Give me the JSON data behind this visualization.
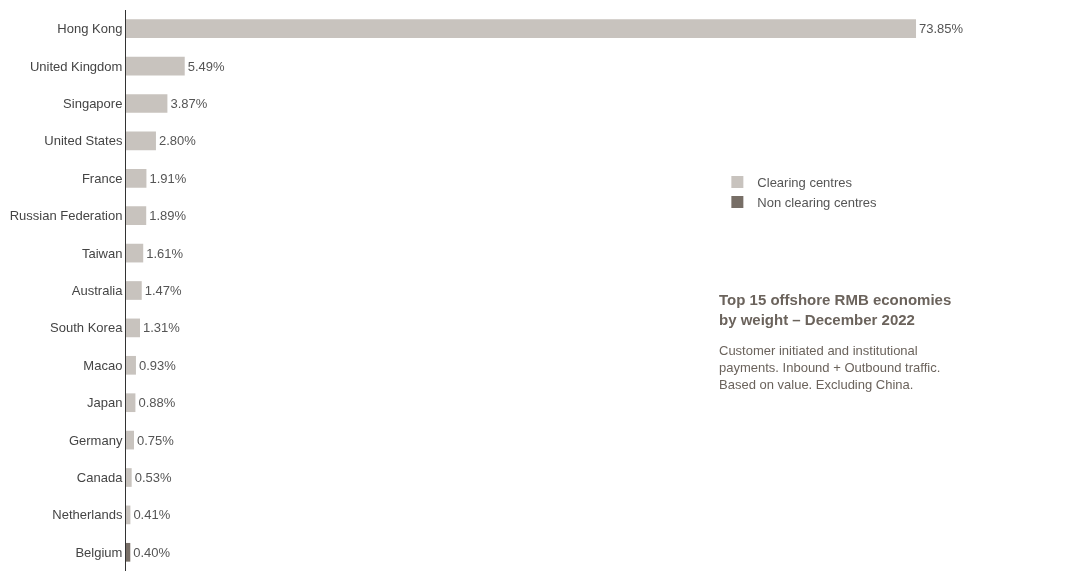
{
  "chart_data": {
    "type": "bar",
    "orientation": "horizontal",
    "title": "Top 15 offshore RMB economies by weight – December 2022",
    "subtitle": "Customer initiated and institutional payments. Inbound + Outbound traffic. Based on value. Excluding China.",
    "categories": [
      "Hong Kong",
      "United Kingdom",
      "Singapore",
      "United States",
      "France",
      "Russian Federation",
      "Taiwan",
      "Australia",
      "South Korea",
      "Macao",
      "Japan",
      "Germany",
      "Canada",
      "Netherlands",
      "Belgium"
    ],
    "series": [
      {
        "name": "Clearing centres",
        "color": "#c8c3be",
        "values": [
          73.85,
          5.49,
          3.87,
          2.8,
          1.91,
          1.89,
          1.61,
          1.47,
          1.31,
          0.93,
          0.88,
          0.75,
          0.53,
          0.41,
          null
        ],
        "value_labels": [
          "73.85%",
          "5.49%",
          "3.87%",
          "2.80%",
          "1.91%",
          "1.89%",
          "1.61%",
          "1.47%",
          "1.31%",
          "0.93%",
          "0.88%",
          "0.75%",
          "0.53%",
          "0.41%",
          null
        ]
      },
      {
        "name": "Non clearing centres",
        "color": "#776e66",
        "values": [
          null,
          null,
          null,
          null,
          null,
          null,
          null,
          null,
          null,
          null,
          null,
          null,
          null,
          null,
          0.4
        ],
        "value_labels": [
          null,
          null,
          null,
          null,
          null,
          null,
          null,
          null,
          null,
          null,
          null,
          null,
          null,
          null,
          "0.40%"
        ]
      }
    ],
    "legend": "right",
    "tick_labels": "y"
  }
}
